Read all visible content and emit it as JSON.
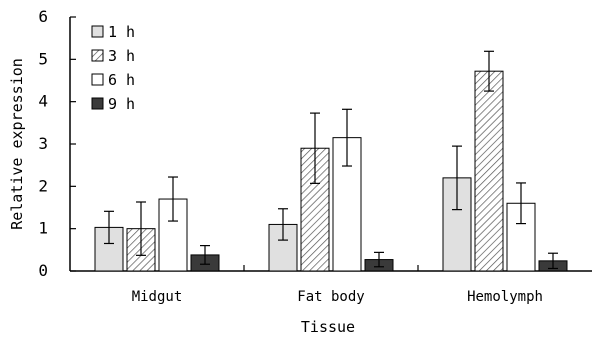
{
  "chart_data": {
    "type": "bar",
    "title": "",
    "xlabel": "Tissue",
    "ylabel": "Relative expression",
    "categories": [
      "Midgut",
      "Fat body",
      "Hemolymph"
    ],
    "ylim": [
      0,
      6
    ],
    "yticks": [
      0,
      1,
      2,
      3,
      4,
      5,
      6
    ],
    "grid": false,
    "legend_position": "top-left",
    "series": [
      {
        "name": "1 h",
        "fill": "#e0e0e0",
        "pattern": "solid",
        "values": [
          1.03,
          1.1,
          2.2
        ],
        "errors": [
          0.38,
          0.37,
          0.75
        ]
      },
      {
        "name": "3 h",
        "fill": "#ffffff",
        "pattern": "hatch",
        "values": [
          1.0,
          2.9,
          4.72
        ],
        "errors": [
          0.63,
          0.83,
          0.47
        ]
      },
      {
        "name": "6 h",
        "fill": "#ffffff",
        "pattern": "solid",
        "values": [
          1.7,
          3.15,
          1.6
        ],
        "errors": [
          0.52,
          0.67,
          0.48
        ]
      },
      {
        "name": "9 h",
        "fill": "#3a3a3a",
        "pattern": "solid",
        "values": [
          0.38,
          0.27,
          0.24
        ],
        "errors": [
          0.22,
          0.17,
          0.18
        ]
      }
    ]
  }
}
